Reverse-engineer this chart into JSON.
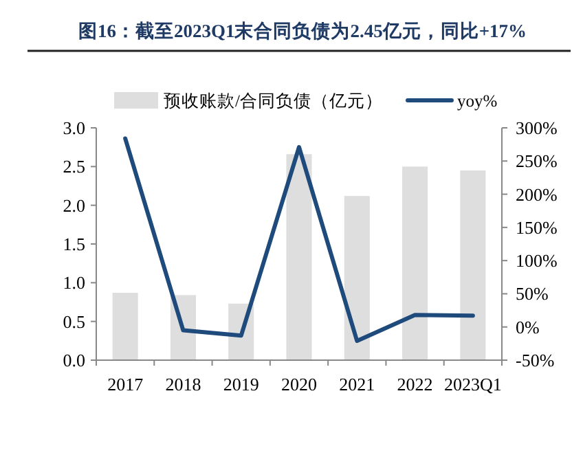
{
  "chart_data": {
    "type": "bar",
    "title": "图16：截至2023Q1末合同负债为2.45亿元，同比+17%",
    "categories": [
      "2017",
      "2018",
      "2019",
      "2020",
      "2021",
      "2022",
      "2023Q1"
    ],
    "series": [
      {
        "name": "预收账款/合同负债（亿元）",
        "color": "#dedede",
        "values": [
          0.87,
          0.84,
          0.73,
          2.66,
          2.12,
          2.5,
          2.45
        ]
      },
      {
        "name": "yoy%",
        "type": "line",
        "axis": "y2",
        "color": "#1f4a7c",
        "values": [
          284,
          -5,
          -13,
          271,
          -21,
          18,
          17
        ]
      }
    ],
    "ylim": [
      0,
      3
    ],
    "yticks": [
      {
        "value": 0,
        "label": "0.0"
      },
      {
        "value": 0.5,
        "label": "0.5"
      },
      {
        "value": 1,
        "label": "1.0"
      },
      {
        "value": 1.5,
        "label": "1.5"
      },
      {
        "value": 2,
        "label": "2.0"
      },
      {
        "value": 2.5,
        "label": "2.5"
      },
      {
        "value": 3,
        "label": "3.0"
      }
    ],
    "y2lim": [
      -50,
      300
    ],
    "y2ticks": [
      {
        "value": -50,
        "label": "-50%"
      },
      {
        "value": 0,
        "label": "0%"
      },
      {
        "value": 50,
        "label": "50%"
      },
      {
        "value": 100,
        "label": "100%"
      },
      {
        "value": 150,
        "label": "150%"
      },
      {
        "value": 200,
        "label": "200%"
      },
      {
        "value": 250,
        "label": "250%"
      },
      {
        "value": 300,
        "label": "300%"
      }
    ],
    "legend": "top",
    "grid": false
  }
}
